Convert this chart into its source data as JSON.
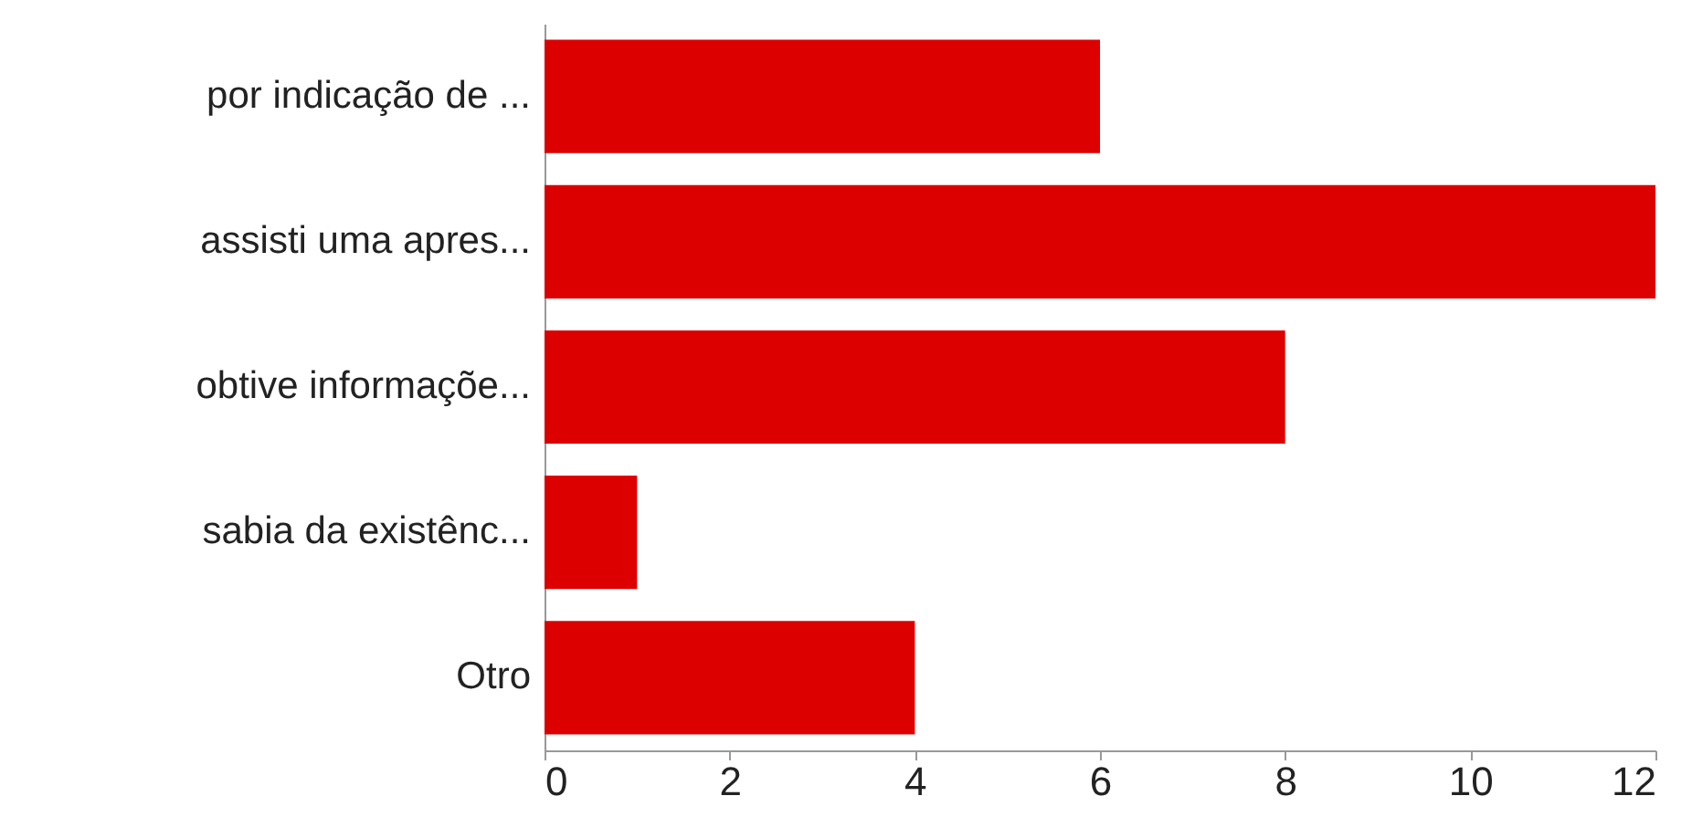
{
  "chart_data": {
    "type": "bar",
    "orientation": "horizontal",
    "categories": [
      "por indicação de ...",
      "assisti uma apres...",
      "obtive informaçõe...",
      "sabia da existênc...",
      "Otro"
    ],
    "values": [
      6,
      12,
      8,
      1,
      4
    ],
    "color": "#dc0000",
    "xlim": [
      0,
      12
    ],
    "xticks": [
      0,
      2,
      4,
      6,
      8,
      10,
      12
    ]
  }
}
